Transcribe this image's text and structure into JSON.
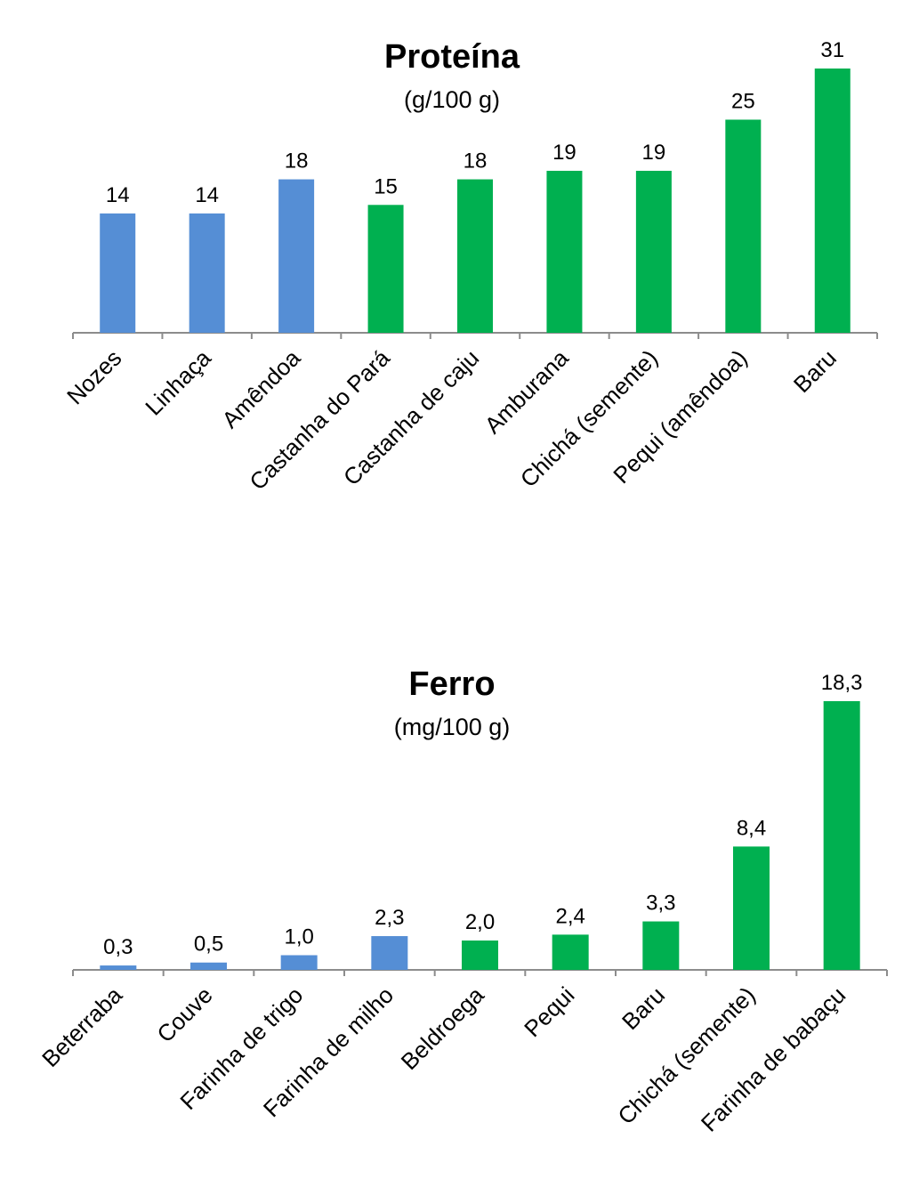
{
  "chart_data": [
    {
      "type": "bar",
      "title": "Proteína",
      "subtitle": "(g/100 g)",
      "categories": [
        "Nozes",
        "Linhaça",
        "Amêndoa",
        "Castanha do Pará",
        "Castanha de caju",
        "Amburana",
        "Chichá (semente)",
        "Pequi (amêndoa)",
        "Baru"
      ],
      "values": [
        14,
        14,
        18,
        15,
        18,
        19,
        19,
        25,
        31
      ],
      "value_labels": [
        "14",
        "14",
        "18",
        "15",
        "18",
        "19",
        "19",
        "25",
        "31"
      ],
      "colors": [
        "#558ed5",
        "#558ed5",
        "#558ed5",
        "#00b050",
        "#00b050",
        "#00b050",
        "#00b050",
        "#00b050",
        "#00b050"
      ],
      "ylim": [
        0,
        31
      ],
      "grid": false,
      "xlabel": "",
      "ylabel": ""
    },
    {
      "type": "bar",
      "title": "Ferro",
      "subtitle": "(mg/100 g)",
      "categories": [
        "Beterraba",
        "Couve",
        "Farinha de trigo",
        "Farinha de milho",
        "Beldroega",
        "Pequi",
        "Baru",
        "Chichá (semente)",
        "Farinha de babaçu"
      ],
      "values": [
        0.3,
        0.5,
        1.0,
        2.3,
        2.0,
        2.4,
        3.3,
        8.4,
        18.3
      ],
      "value_labels": [
        "0,3",
        "0,5",
        "1,0",
        "2,3",
        "2,0",
        "2,4",
        "3,3",
        "8,4",
        "18,3"
      ],
      "colors": [
        "#558ed5",
        "#558ed5",
        "#558ed5",
        "#558ed5",
        "#00b050",
        "#00b050",
        "#00b050",
        "#00b050",
        "#00b050"
      ],
      "ylim": [
        0,
        18.3
      ],
      "grid": false,
      "xlabel": "",
      "ylabel": ""
    }
  ]
}
